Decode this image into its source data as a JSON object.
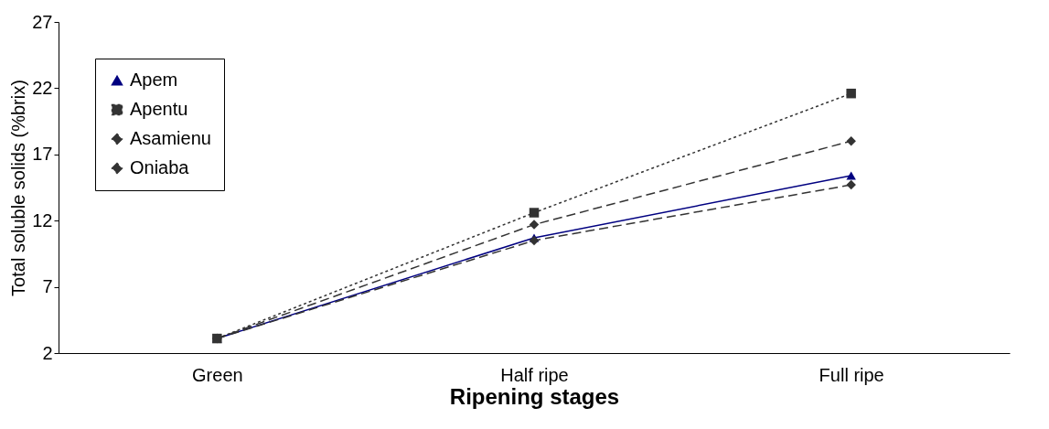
{
  "chart_data": {
    "type": "line",
    "xlabel": "Ripening stages",
    "ylabel": "Total soluble solids (%brix)",
    "categories": [
      "Green",
      "Half ripe",
      "Full ripe"
    ],
    "series": [
      {
        "name": "Apem",
        "color": "#000080",
        "values": [
          3.1,
          10.7,
          15.4
        ],
        "marker": "triangle",
        "line_style": "solid"
      },
      {
        "name": "Apentu",
        "color": "#333333",
        "values": [
          3.1,
          12.6,
          21.6
        ],
        "marker": "square",
        "line_style": "dotted"
      },
      {
        "name": "Asamienu",
        "color": "#333333",
        "values": [
          3.1,
          11.7,
          18.0
        ],
        "marker": "diamond",
        "line_style": "dashed"
      },
      {
        "name": "Oniaba",
        "color": "#333333",
        "values": [
          3.1,
          10.5,
          14.7
        ],
        "marker": "diamond",
        "line_style": "dashed"
      }
    ],
    "ylim": [
      2,
      27
    ],
    "yticks": [
      2,
      7,
      12,
      17,
      22,
      27
    ],
    "grid": false,
    "legend": "top left"
  }
}
